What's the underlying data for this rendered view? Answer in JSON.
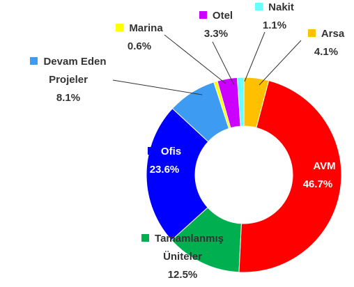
{
  "chart_data": {
    "type": "donut",
    "categories": [
      "Arsa",
      "AVM",
      "Tamamlanmış Üniteler",
      "Ofis",
      "Devam Eden Projeler",
      "Marina",
      "Otel",
      "Nakit"
    ],
    "values": [
      4.1,
      46.7,
      12.5,
      23.6,
      8.1,
      0.6,
      3.3,
      1.1
    ],
    "value_labels": [
      "4.1%",
      "46.7%",
      "12.5%",
      "23.6%",
      "8.1%",
      "0.6%",
      "3.3%",
      "1.1%"
    ],
    "colors": [
      "#ffc000",
      "#ff0000",
      "#00b050",
      "#0000ff",
      "#3d9bf2",
      "#ffff00",
      "#cc00ff",
      "#66ffff"
    ]
  }
}
